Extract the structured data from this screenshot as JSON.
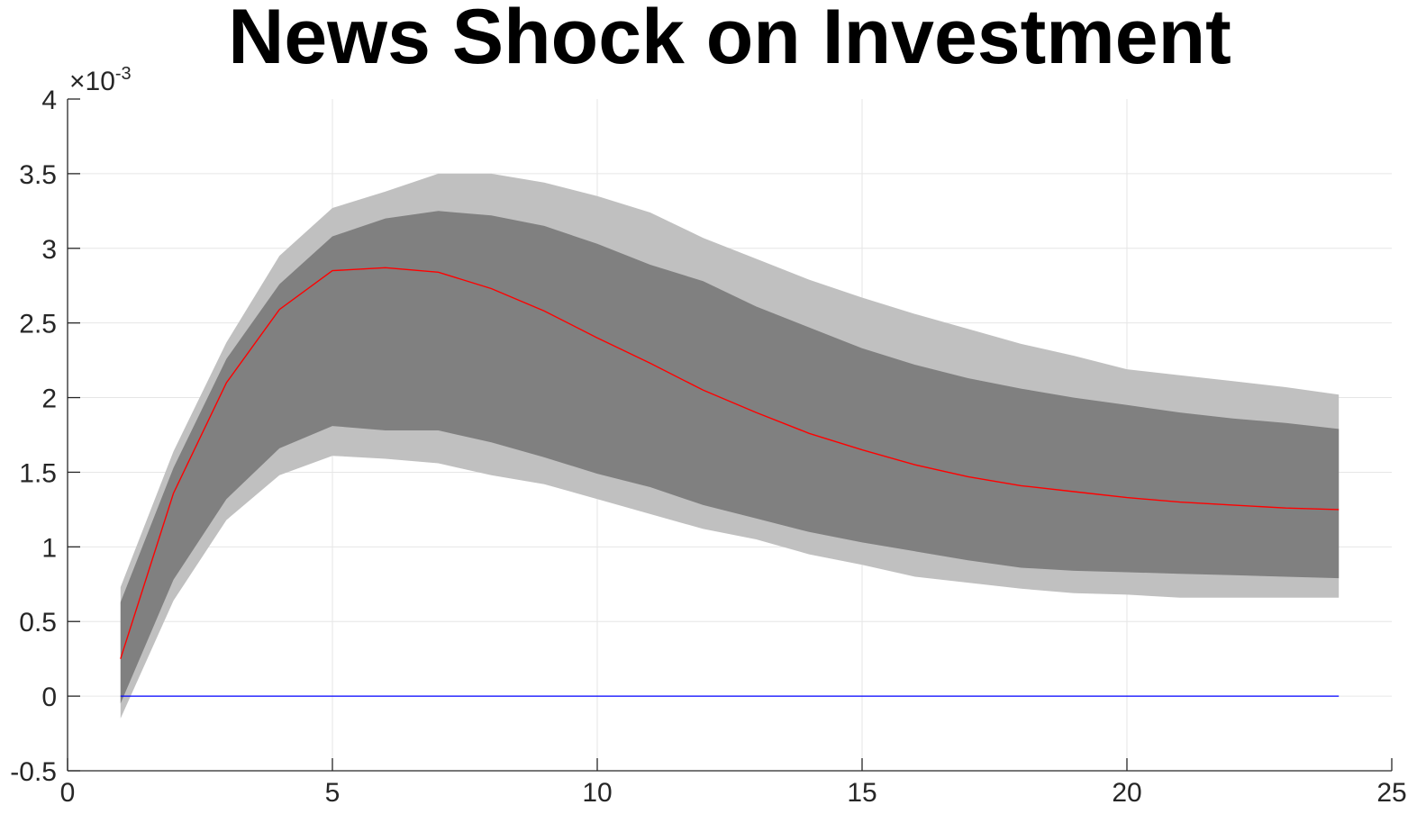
{
  "chart_data": {
    "type": "area",
    "title": "News Shock on Investment",
    "xlabel": "",
    "ylabel": "",
    "y_exponent_label": "×10",
    "y_exponent_power": "-3",
    "xlim": [
      0,
      25
    ],
    "ylim": [
      -0.5,
      4
    ],
    "x_ticks": [
      0,
      5,
      10,
      15,
      20,
      25
    ],
    "x_tick_labels": [
      "0",
      "5",
      "10",
      "15",
      "20",
      "25"
    ],
    "y_ticks": [
      -0.5,
      0,
      0.5,
      1,
      1.5,
      2,
      2.5,
      3,
      3.5,
      4
    ],
    "y_tick_labels": [
      "-0.5",
      "0",
      "0.5",
      "1",
      "1.5",
      "2",
      "2.5",
      "3",
      "3.5",
      "4"
    ],
    "grid": true,
    "colors": {
      "outer_band": "#c0c0c0",
      "inner_band": "#808080",
      "median_line": "#ff0000",
      "zero_line": "#0000ff",
      "grid": "#e6e6e6",
      "axis": "#262626"
    },
    "x": [
      1,
      2,
      3,
      4,
      5,
      6,
      7,
      8,
      9,
      10,
      11,
      12,
      13,
      14,
      15,
      16,
      17,
      18,
      19,
      20,
      21,
      22,
      23,
      24
    ],
    "series": [
      {
        "role": "outer_band_upper",
        "values": [
          0.73,
          1.64,
          2.37,
          2.95,
          3.27,
          3.38,
          3.5,
          3.5,
          3.44,
          3.35,
          3.24,
          3.07,
          2.93,
          2.79,
          2.67,
          2.56,
          2.46,
          2.36,
          2.28,
          2.19,
          2.15,
          2.11,
          2.07,
          2.02
        ]
      },
      {
        "role": "outer_band_lower",
        "values": [
          -0.15,
          0.64,
          1.18,
          1.48,
          1.61,
          1.59,
          1.56,
          1.48,
          1.42,
          1.32,
          1.22,
          1.12,
          1.05,
          0.95,
          0.88,
          0.8,
          0.76,
          0.72,
          0.69,
          0.68,
          0.66,
          0.66,
          0.66,
          0.66
        ]
      },
      {
        "role": "inner_band_upper",
        "values": [
          0.63,
          1.53,
          2.26,
          2.76,
          3.08,
          3.2,
          3.25,
          3.22,
          3.15,
          3.03,
          2.89,
          2.78,
          2.61,
          2.47,
          2.33,
          2.22,
          2.13,
          2.06,
          2.0,
          1.95,
          1.9,
          1.86,
          1.83,
          1.79
        ]
      },
      {
        "role": "inner_band_lower",
        "values": [
          -0.05,
          0.78,
          1.32,
          1.66,
          1.81,
          1.78,
          1.78,
          1.7,
          1.6,
          1.49,
          1.4,
          1.28,
          1.19,
          1.1,
          1.03,
          0.97,
          0.91,
          0.86,
          0.84,
          0.83,
          0.82,
          0.81,
          0.8,
          0.79
        ]
      },
      {
        "role": "median",
        "values": [
          0.25,
          1.36,
          2.1,
          2.59,
          2.85,
          2.87,
          2.84,
          2.73,
          2.58,
          2.4,
          2.23,
          2.05,
          1.9,
          1.76,
          1.65,
          1.55,
          1.47,
          1.41,
          1.37,
          1.33,
          1.3,
          1.28,
          1.26,
          1.25
        ]
      },
      {
        "role": "zero_line",
        "values": [
          0,
          0,
          0,
          0,
          0,
          0,
          0,
          0,
          0,
          0,
          0,
          0,
          0,
          0,
          0,
          0,
          0,
          0,
          0,
          0,
          0,
          0,
          0,
          0
        ]
      }
    ]
  }
}
